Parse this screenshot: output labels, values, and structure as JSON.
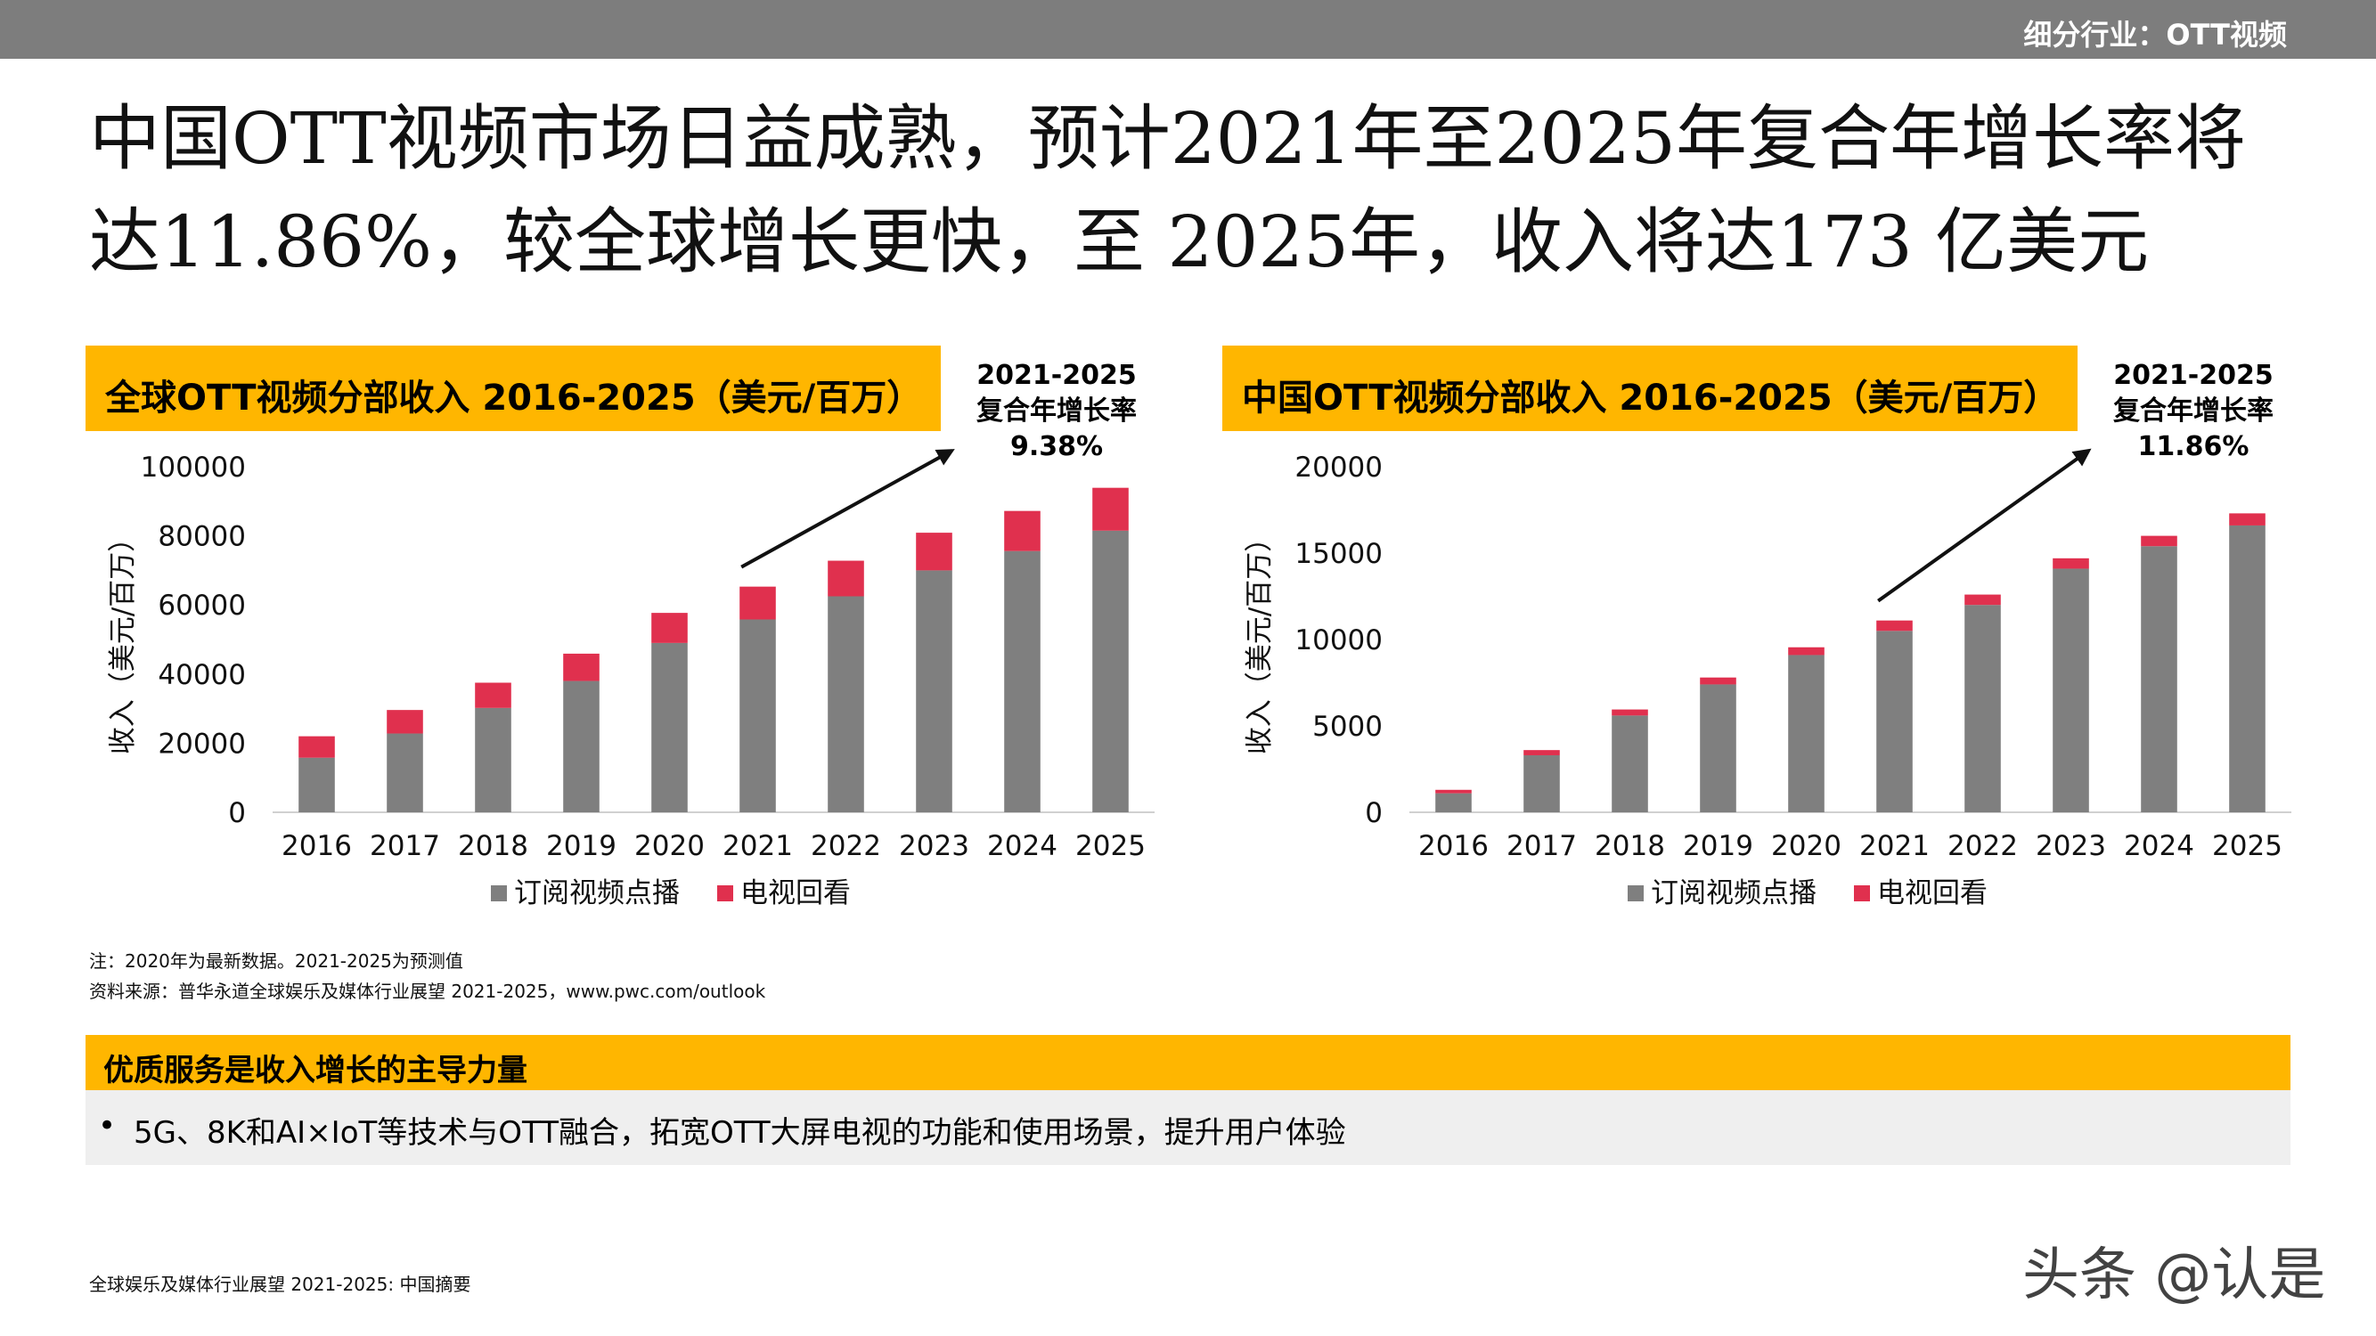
{
  "header": {
    "section_tag": "细分行业：OTT视频"
  },
  "headline": {
    "line1": "中国OTT视频市场日益成熟，预计2021年至2025年复合年增长率将",
    "line2": "达11.86%，较全球增长更快，至 2025年，收入将达173 亿美元"
  },
  "colors": {
    "accent": "#ffb600",
    "series_svod": "#7f7f7f",
    "series_tv": "#e0304e",
    "top_bar": "#7d7d7d"
  },
  "chart_data": [
    {
      "type": "bar",
      "stacked": true,
      "title": "全球OTT视频分部收入 2016-2025（美元/百万）",
      "cagr_label": [
        "2021-2025",
        "复合年增长率",
        "9.38%"
      ],
      "ylabel": "收入（美元/百万）",
      "ylim": [
        0,
        100000
      ],
      "yticks": [
        "0",
        "20000",
        "40000",
        "60000",
        "80000",
        "100000"
      ],
      "categories": [
        "2016",
        "2017",
        "2018",
        "2019",
        "2020",
        "2021",
        "2022",
        "2023",
        "2024",
        "2025"
      ],
      "series": [
        {
          "name": "订阅视频点播",
          "values": [
            15800,
            22800,
            30200,
            38000,
            49000,
            55800,
            62500,
            70000,
            75600,
            81500
          ]
        },
        {
          "name": "电视回看",
          "values": [
            6200,
            6800,
            7300,
            7900,
            8700,
            9500,
            10300,
            10900,
            11600,
            12400
          ]
        }
      ],
      "legend_position": "bottom",
      "grid": false
    },
    {
      "type": "bar",
      "stacked": true,
      "title": "中国OTT视频分部收入 2016-2025（美元/百万）",
      "cagr_label": [
        "2021-2025",
        "复合年增长率",
        "11.86%"
      ],
      "ylabel": "收入（美元/百万）",
      "ylim": [
        0,
        20000
      ],
      "yticks": [
        "0",
        "5000",
        "10000",
        "15000",
        "20000"
      ],
      "categories": [
        "2016",
        "2017",
        "2018",
        "2019",
        "2020",
        "2021",
        "2022",
        "2023",
        "2024",
        "2025"
      ],
      "series": [
        {
          "name": "订阅视频点播",
          "values": [
            1100,
            3300,
            5600,
            7400,
            9100,
            10500,
            12000,
            14100,
            15400,
            16600
          ]
        },
        {
          "name": "电视回看",
          "values": [
            200,
            300,
            350,
            400,
            450,
            600,
            600,
            600,
            600,
            700
          ]
        }
      ],
      "legend_position": "bottom",
      "grid": false
    }
  ],
  "notes": {
    "note1": "注：2020年为最新数据。2021-2025为预测值",
    "note2": "资料来源：普华永道全球娱乐及媒体行业展望 2021-2025，www.pwc.com/outlook"
  },
  "highlight": {
    "title": "优质服务是收入增长的主导力量",
    "bullet": "•",
    "text": "5G、8K和AI×IoT等技术与OTT融合，拓宽OTT大屏电视的功能和使用场景，提升用户体验"
  },
  "footer": {
    "text": "全球娱乐及媒体行业展望 2021-2025: 中国摘要"
  },
  "watermark": {
    "text": "头条 @认是"
  }
}
